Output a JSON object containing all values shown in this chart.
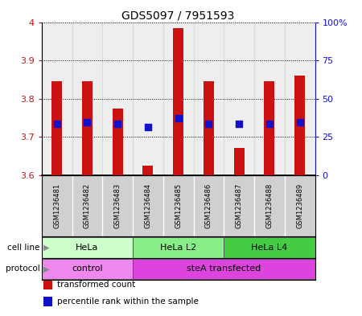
{
  "title": "GDS5097 / 7951593",
  "samples": [
    "GSM1236481",
    "GSM1236482",
    "GSM1236483",
    "GSM1236484",
    "GSM1236485",
    "GSM1236486",
    "GSM1236487",
    "GSM1236488",
    "GSM1236489"
  ],
  "transformed_count": [
    3.845,
    3.845,
    3.775,
    3.625,
    3.985,
    3.845,
    3.67,
    3.845,
    3.86
  ],
  "percentile_rank": [
    3.735,
    3.738,
    3.735,
    3.725,
    3.748,
    3.735,
    3.733,
    3.735,
    3.738
  ],
  "ylim_left": [
    3.6,
    4.0
  ],
  "ylim_right": [
    0,
    100
  ],
  "yticks_left": [
    3.6,
    3.7,
    3.8,
    3.9,
    4.0
  ],
  "ytick_labels_left": [
    "3.6",
    "3.7",
    "3.8",
    "3.9",
    "4"
  ],
  "yticks_right": [
    0,
    25,
    50,
    75,
    100
  ],
  "ytick_labels_right": [
    "0",
    "25",
    "50",
    "75",
    "100%"
  ],
  "bar_color": "#cc1111",
  "dot_color": "#1111cc",
  "bar_bottom": 3.6,
  "cell_line_groups": [
    {
      "label": "HeLa",
      "start": 0,
      "end": 3,
      "color": "#ccffcc"
    },
    {
      "label": "HeLa L2",
      "start": 3,
      "end": 6,
      "color": "#88ee88"
    },
    {
      "label": "HeLa L4",
      "start": 6,
      "end": 9,
      "color": "#44cc44"
    }
  ],
  "protocol_groups": [
    {
      "label": "control",
      "start": 0,
      "end": 3,
      "color": "#ee88ee"
    },
    {
      "label": "steA transfected",
      "start": 3,
      "end": 9,
      "color": "#dd44dd"
    }
  ],
  "legend_items": [
    {
      "label": "transformed count",
      "color": "#cc1111"
    },
    {
      "label": "percentile rank within the sample",
      "color": "#1111cc"
    }
  ],
  "bg_color": "#d0d0d0",
  "bar_width": 0.35,
  "dot_size": 28
}
